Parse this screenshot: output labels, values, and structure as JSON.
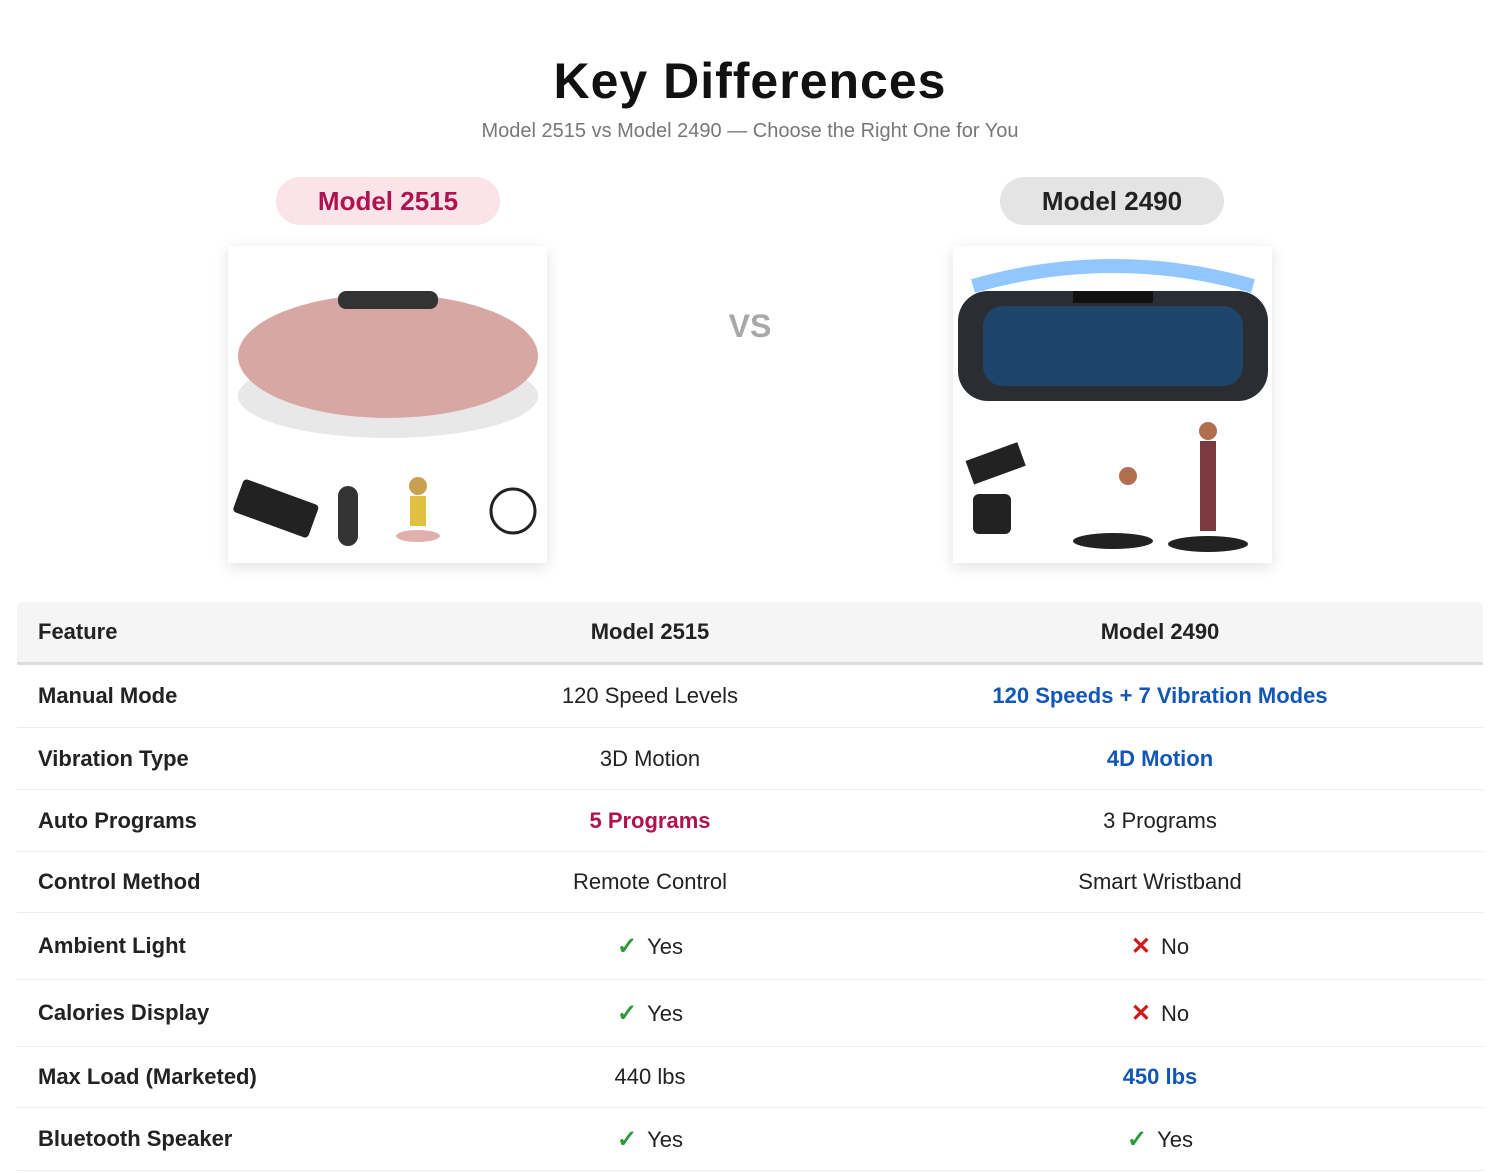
{
  "header": {
    "title": "Key Differences",
    "subtitle": "Model 2515 vs Model 2490 — Choose the Right One for You"
  },
  "products": [
    {
      "label": "Model 2515",
      "theme": "pink"
    },
    {
      "label": "Model 2490",
      "theme": "gray"
    }
  ],
  "vs": "VS",
  "table": {
    "columns": [
      "Feature",
      "Model 2515",
      "Model 2490"
    ],
    "rows": [
      [
        "Manual Mode",
        {
          "text": "120 Speed Levels"
        },
        {
          "text": "120 Speeds + 7 Vibration Modes",
          "emphasis": "blue"
        }
      ],
      [
        "Vibration Type",
        {
          "text": "3D Motion"
        },
        {
          "text": "4D Motion",
          "emphasis": "blue"
        }
      ],
      [
        "Auto Programs",
        {
          "text": "5 Programs",
          "emphasis": "pink"
        },
        {
          "text": "3 Programs"
        }
      ],
      [
        "Control Method",
        {
          "text": "Remote Control"
        },
        {
          "text": "Smart Wristband"
        }
      ],
      [
        "Ambient Light",
        {
          "icon": "✓",
          "text": "Yes",
          "emphasis": "yes"
        },
        {
          "icon": "✕",
          "text": "No",
          "emphasis": "no"
        }
      ],
      [
        "Calories Display",
        {
          "icon": "✓",
          "text": "Yes",
          "emphasis": "yes"
        },
        {
          "icon": "✕",
          "text": "No",
          "emphasis": "no"
        }
      ],
      [
        "Max Load (Marketed)",
        {
          "text": "440 lbs"
        },
        {
          "text": "450 lbs",
          "emphasis": "blue"
        }
      ],
      [
        "Bluetooth Speaker",
        {
          "icon": "✓",
          "text": "Yes",
          "emphasis": "yes"
        },
        {
          "icon": "✓",
          "text": "Yes",
          "emphasis": "yes"
        }
      ]
    ]
  }
}
